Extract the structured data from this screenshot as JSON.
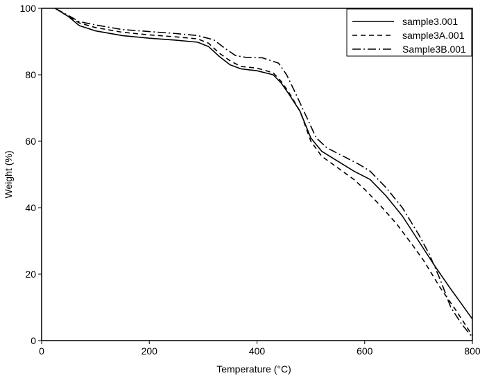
{
  "chart_data": {
    "type": "line",
    "title": "",
    "xlabel": "Temperature (°C)",
    "ylabel": "Weight (%)",
    "xlim": [
      0,
      800
    ],
    "ylim": [
      0,
      100
    ],
    "x_ticks": [
      0,
      200,
      400,
      600,
      800
    ],
    "y_ticks": [
      0,
      20,
      40,
      60,
      80,
      100
    ],
    "grid": false,
    "legend_position": "top-right",
    "series": [
      {
        "name": "sample3.001",
        "style": "solid",
        "color": "#000000",
        "points": [
          [
            25,
            100
          ],
          [
            50,
            97.5
          ],
          [
            70,
            94.8
          ],
          [
            100,
            93.2
          ],
          [
            150,
            91.8
          ],
          [
            200,
            91
          ],
          [
            250,
            90.4
          ],
          [
            290,
            89.8
          ],
          [
            310,
            88.5
          ],
          [
            330,
            85.5
          ],
          [
            350,
            83
          ],
          [
            370,
            81.8
          ],
          [
            400,
            81.2
          ],
          [
            430,
            80
          ],
          [
            445,
            77.5
          ],
          [
            460,
            74
          ],
          [
            480,
            69
          ],
          [
            500,
            61
          ],
          [
            520,
            57
          ],
          [
            550,
            54
          ],
          [
            580,
            51
          ],
          [
            610,
            48.5
          ],
          [
            640,
            43.5
          ],
          [
            670,
            37.5
          ],
          [
            700,
            30
          ],
          [
            730,
            22.5
          ],
          [
            760,
            15.5
          ],
          [
            780,
            11
          ],
          [
            800,
            6.5
          ]
        ]
      },
      {
        "name": "sample3A.001",
        "style": "dashed",
        "color": "#000000",
        "points": [
          [
            25,
            100
          ],
          [
            50,
            97.5
          ],
          [
            70,
            95.6
          ],
          [
            100,
            94.2
          ],
          [
            150,
            92.8
          ],
          [
            200,
            92
          ],
          [
            250,
            91.4
          ],
          [
            290,
            90.8
          ],
          [
            310,
            89.5
          ],
          [
            330,
            86.5
          ],
          [
            350,
            84.2
          ],
          [
            370,
            82.5
          ],
          [
            400,
            82
          ],
          [
            430,
            80.6
          ],
          [
            445,
            78
          ],
          [
            460,
            74.5
          ],
          [
            480,
            69
          ],
          [
            500,
            60
          ],
          [
            520,
            55.5
          ],
          [
            550,
            52
          ],
          [
            580,
            48.5
          ],
          [
            600,
            45.5
          ],
          [
            630,
            40.5
          ],
          [
            660,
            35
          ],
          [
            690,
            28.5
          ],
          [
            710,
            24
          ],
          [
            740,
            16
          ],
          [
            770,
            9
          ],
          [
            800,
            1.5
          ]
        ]
      },
      {
        "name": "Sample3B.001",
        "style": "dash-dot",
        "color": "#000000",
        "points": [
          [
            25,
            100
          ],
          [
            50,
            97.8
          ],
          [
            70,
            96
          ],
          [
            100,
            95
          ],
          [
            150,
            93.6
          ],
          [
            200,
            93
          ],
          [
            250,
            92.4
          ],
          [
            290,
            91.8
          ],
          [
            320,
            90.5
          ],
          [
            340,
            88
          ],
          [
            360,
            85.8
          ],
          [
            380,
            85.2
          ],
          [
            410,
            85.1
          ],
          [
            440,
            83.5
          ],
          [
            455,
            80
          ],
          [
            470,
            75
          ],
          [
            490,
            68
          ],
          [
            510,
            61
          ],
          [
            530,
            58
          ],
          [
            560,
            55.5
          ],
          [
            590,
            53
          ],
          [
            610,
            51
          ],
          [
            640,
            46
          ],
          [
            670,
            40
          ],
          [
            700,
            32
          ],
          [
            720,
            26
          ],
          [
            740,
            18.5
          ],
          [
            760,
            10
          ],
          [
            780,
            5
          ],
          [
            800,
            1
          ]
        ]
      }
    ]
  }
}
